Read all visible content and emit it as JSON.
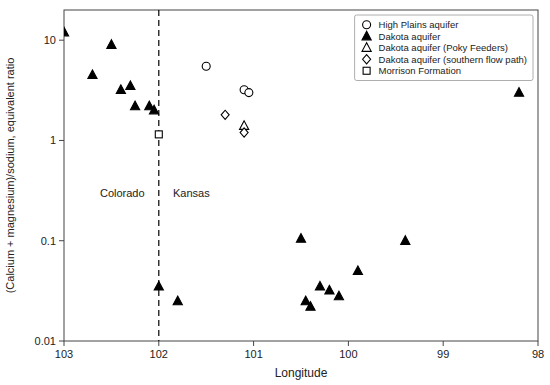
{
  "chart_data": {
    "type": "scatter",
    "xlabel": "Longitude",
    "ylabel": "(Calcium + magnesium)/sodium, equivalent ratio",
    "xlim": [
      103,
      98
    ],
    "ylim": [
      0.01,
      20
    ],
    "xticks": [
      103,
      102,
      101,
      100,
      99,
      98
    ],
    "yticks": [
      0.01,
      0.1,
      1,
      10
    ],
    "log": "y",
    "grid": false,
    "legend": "upper right",
    "series": [
      {
        "name": "High Plains aquifer",
        "color": "black",
        "marker": "circle-open",
        "x": [
          101.5,
          101.1,
          101.05
        ],
        "values": [
          5.5,
          3.2,
          3.0
        ]
      },
      {
        "name": "Dakota aquifer",
        "color": "black",
        "marker": "triangle",
        "x": [
          103.0,
          102.7,
          102.5,
          102.4,
          102.3,
          102.25,
          102.1,
          102.05,
          102.0,
          101.8,
          100.5,
          100.45,
          100.4,
          100.3,
          100.2,
          100.1,
          99.9,
          99.4,
          98.2
        ],
        "values": [
          12.0,
          4.5,
          9.0,
          3.2,
          3.5,
          2.2,
          2.2,
          2.0,
          0.035,
          0.025,
          0.105,
          0.025,
          0.022,
          0.035,
          0.032,
          0.028,
          0.05,
          0.1,
          3.0
        ]
      },
      {
        "name": "Dakota aquifer (Poky Feeders)",
        "color": "black",
        "marker": "triangle-open",
        "x": [
          101.1
        ],
        "values": [
          1.4
        ]
      },
      {
        "name": "Dakota aquifer (southern flow path)",
        "color": "black",
        "marker": "diamond-open",
        "x": [
          101.3,
          101.1
        ],
        "values": [
          1.8,
          1.2
        ]
      },
      {
        "name": "Morrison Formation",
        "color": "black",
        "marker": "square-open",
        "x": [
          102.0
        ],
        "values": [
          1.15
        ]
      }
    ],
    "reference_lines": [
      {
        "x": 102.0,
        "color": "black",
        "line_style": "dashed"
      }
    ],
    "annotations": [
      {
        "text": "Colorado",
        "x": 102.15,
        "y": 0.3
      },
      {
        "text": "Kansas",
        "x": 101.85,
        "y": 0.3
      }
    ]
  }
}
